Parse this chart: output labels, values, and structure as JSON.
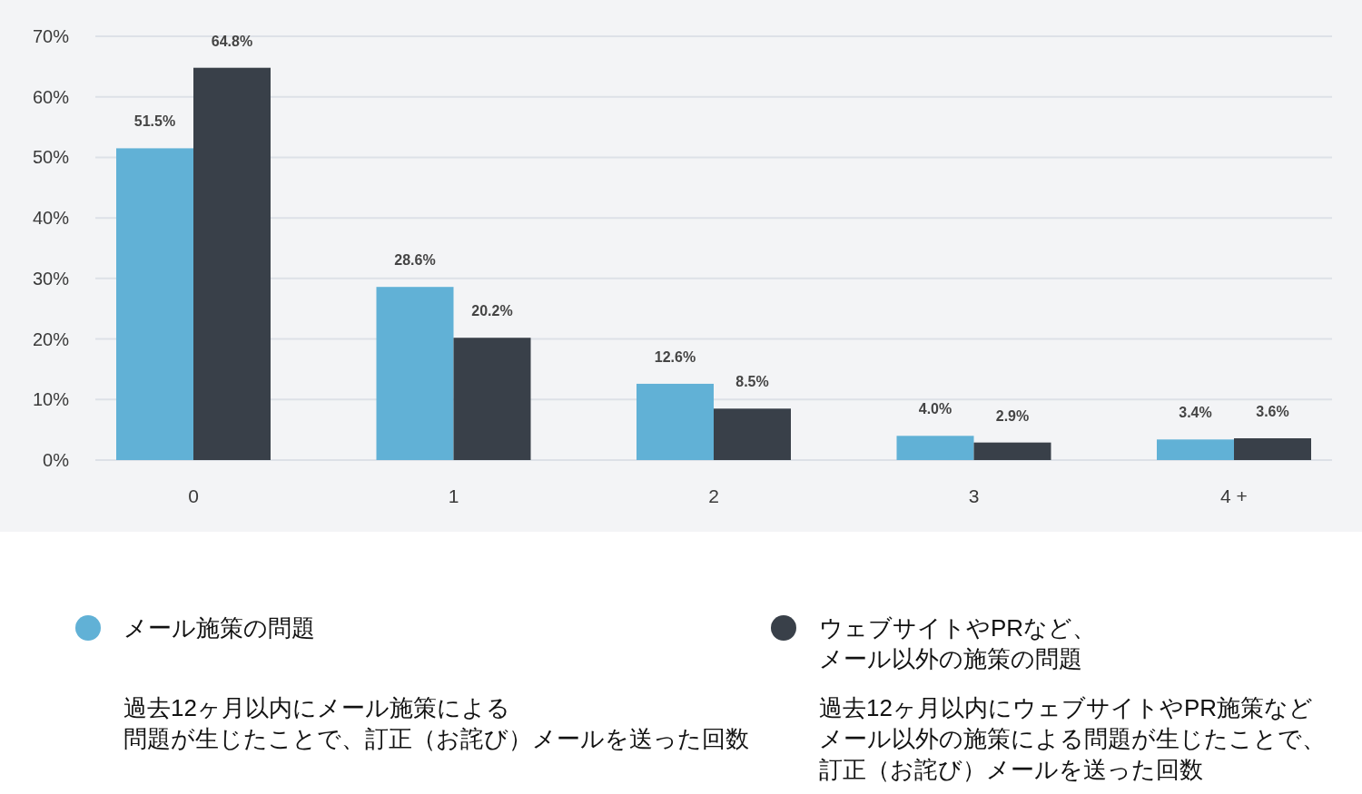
{
  "chart_data": {
    "type": "bar",
    "categories": [
      "0",
      "1",
      "2",
      "3",
      "4 +"
    ],
    "series": [
      {
        "name": "メール施策の問題",
        "color": "#61b1d6",
        "values": [
          51.5,
          28.6,
          12.6,
          4.0,
          3.4
        ],
        "value_labels": [
          "51.5%",
          "28.6%",
          "12.6%",
          "4.0%",
          "3.4%"
        ]
      },
      {
        "name": "ウェブサイトやPRなど、メール以外の施策の問題",
        "color": "#394049",
        "values": [
          64.8,
          20.2,
          8.5,
          2.9,
          3.6
        ],
        "value_labels": [
          "64.8%",
          "20.2%",
          "8.5%",
          "2.9%",
          "3.6%"
        ]
      }
    ],
    "ylim": [
      0,
      70
    ],
    "yticks": [
      {
        "value": 0,
        "label": "0%"
      },
      {
        "value": 10,
        "label": "10%"
      },
      {
        "value": 20,
        "label": "20%"
      },
      {
        "value": 30,
        "label": "30%"
      },
      {
        "value": 40,
        "label": "40%"
      },
      {
        "value": 50,
        "label": "50%"
      },
      {
        "value": 60,
        "label": "60%"
      },
      {
        "value": 70,
        "label": "70%"
      }
    ],
    "grid": "y",
    "legend": "bottom",
    "annotations": [
      "過去12ヶ月以内にメール施策による問題が生じたことで、訂正（お詫び）メールを送った回数",
      "過去12ヶ月以内にウェブサイトやPR施策などメール以外の施策による問題が生じたことで、訂正（お詫び）メールを送った回数"
    ]
  }
}
